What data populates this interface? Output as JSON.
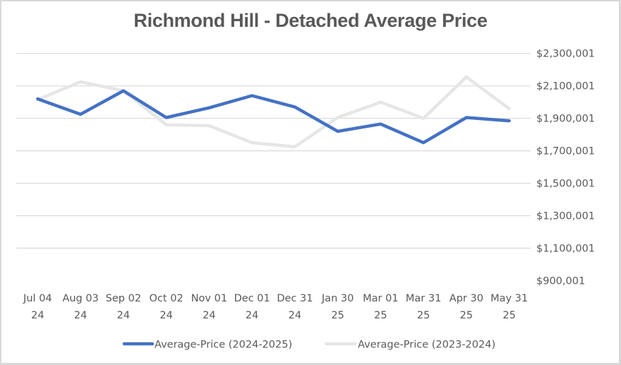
{
  "chart_data": {
    "type": "line",
    "title": "Richmond Hill - Detached Average Price",
    "xlabel": "",
    "ylabel": "",
    "categories": [
      [
        "Jul 04",
        "24"
      ],
      [
        "Aug 03",
        "24"
      ],
      [
        "Sep 02",
        "24"
      ],
      [
        "Oct 02",
        "24"
      ],
      [
        "Nov 01",
        "24"
      ],
      [
        "Dec 01",
        "24"
      ],
      [
        "Dec 31",
        "24"
      ],
      [
        "Jan 30",
        "25"
      ],
      [
        "Mar 01",
        "25"
      ],
      [
        "Mar 31",
        "25"
      ],
      [
        "Apr 30",
        "25"
      ],
      [
        "May 31",
        "25"
      ]
    ],
    "yticks": [
      900001,
      1100001,
      1300001,
      1500001,
      1700001,
      1900001,
      2100001,
      2300001
    ],
    "ytick_labels": [
      "$900,001",
      "$1,100,001",
      "$1,300,001",
      "$1,500,001",
      "$1,700,001",
      "$1,900,001",
      "$2,100,001",
      "$2,300,001"
    ],
    "ylim": [
      900001,
      2300001
    ],
    "y_axis_position": "right",
    "grid": true,
    "legend_position": "bottom",
    "series": [
      {
        "name": "Average-Price (2024-2025)",
        "color": "#4472c4",
        "values": [
          2020000,
          1925000,
          2070000,
          1905000,
          1965000,
          2040000,
          1970000,
          1820000,
          1865000,
          1750000,
          1905000,
          1885000
        ]
      },
      {
        "name": "Average-Price (2023-2024)",
        "color": "#e7e6e6",
        "values": [
          2015000,
          2125000,
          2070000,
          1860000,
          1855000,
          1750000,
          1725000,
          1905000,
          2000000,
          1900000,
          2155000,
          1960000
        ]
      }
    ]
  }
}
